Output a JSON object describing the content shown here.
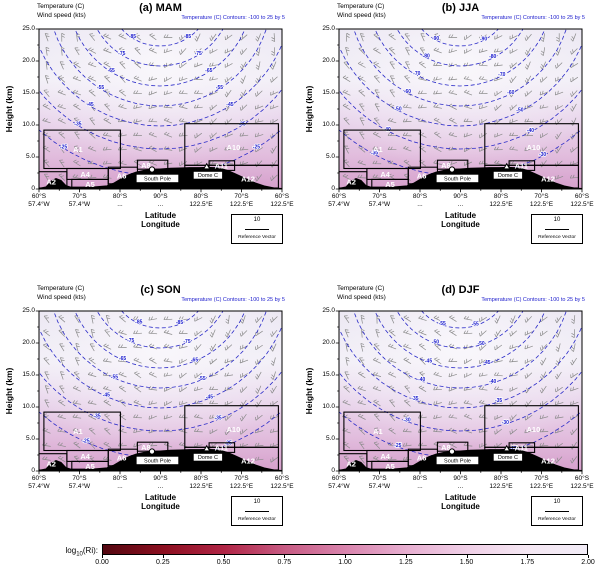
{
  "chart_data": {
    "type": "heatmap",
    "panels": [
      {
        "id": "a",
        "title": "(a) MAM",
        "contour_labels": [
          "-85",
          "-75",
          "-65",
          "-55",
          "-45",
          "-35",
          "-25"
        ]
      },
      {
        "id": "b",
        "title": "(b) JJA",
        "contour_labels": [
          "-90",
          "-80",
          "-70",
          "-60",
          "-50",
          "-40",
          "-30"
        ]
      },
      {
        "id": "c",
        "title": "(c) SON",
        "contour_labels": [
          "-85",
          "-75",
          "-65",
          "-55",
          "-45",
          "-35",
          "-25"
        ]
      },
      {
        "id": "d",
        "title": "(d) DJF",
        "contour_labels": [
          "-55",
          "-50",
          "-45",
          "-40",
          "-35",
          "-30",
          "-25"
        ]
      }
    ],
    "shared": {
      "field_labels": [
        "Temperature (C)",
        "Wind speed (kts)"
      ],
      "contour_note": "Temperature (C) Contours: -100 to 25 by 5",
      "ylabel": "Height (km)",
      "yticks": [
        "25.0",
        "20.0",
        "15.0",
        "10.0",
        "5.0",
        "0"
      ],
      "ytick_values": [
        25,
        20,
        15,
        10,
        5,
        0
      ],
      "ylim": [
        0,
        25
      ],
      "xticks_lat": [
        "60°S",
        "70°S",
        "80°S",
        "90°S",
        "80°S",
        "70°S",
        "60°S"
      ],
      "xticks_lon": [
        "57.4°W",
        "57.4°W",
        "...",
        "...",
        "122.5°E",
        "122.5°E",
        "122.5°E"
      ],
      "xlabel_lines": [
        "Latitude",
        "Longitude"
      ],
      "reference_vector": {
        "value": "10",
        "label": "Reference Vector"
      },
      "contour_color": "#2a2ac8",
      "barb_color": "#8a8a8a",
      "shading_colors": {
        "top": "#eae6f2",
        "upper": "#f2eff7",
        "mid": "#e9d6ec",
        "low": "#e2bede",
        "bottom": "#d6a0cc"
      },
      "regions": [
        {
          "label": "A1",
          "x0": 0.02,
          "x1": 0.335,
          "km0": 3.2,
          "km1": 9.2,
          "label_x": 0.16,
          "label_km": 6.2
        },
        {
          "label": "A2",
          "x0": 0.0,
          "x1": 0.115,
          "km0": 0.15,
          "km1": 2.7,
          "label_x": 0.05,
          "label_km": 1.1
        },
        {
          "label": "A4",
          "x0": 0.115,
          "x1": 0.285,
          "km0": 1.5,
          "km1": 3.2,
          "label_x": 0.19,
          "label_km": 2.3
        },
        {
          "label": "A5",
          "x0": 0.135,
          "x1": 0.285,
          "km0": 0.15,
          "km1": 1.5,
          "label_x": 0.21,
          "label_km": 0.7
        },
        {
          "label": "A6",
          "x0": 0.285,
          "x1": 0.405,
          "km0": 0.8,
          "km1": 3.4,
          "label_x": 0.34,
          "label_km": 2.0
        },
        {
          "label": "A8",
          "x0": 0.405,
          "x1": 0.53,
          "km0": 3.1,
          "km1": 4.5,
          "label_x": 0.44,
          "label_km": 3.7
        },
        {
          "label": "A10",
          "x0": 0.6,
          "x1": 0.985,
          "km0": 3.7,
          "km1": 10.2,
          "label_x": 0.8,
          "label_km": 6.5
        },
        {
          "label": "A11",
          "x0": 0.7,
          "x1": 0.805,
          "km0": 2.9,
          "km1": 4.4,
          "label_x": 0.75,
          "label_km": 3.6
        },
        {
          "label": "A12",
          "x0": 0.6,
          "x1": 0.985,
          "km0": 0.15,
          "km1": 3.7,
          "label_x": 0.86,
          "label_km": 1.6
        }
      ],
      "markers": [
        {
          "label": "South Pole",
          "symbol": "circle",
          "x": 0.465,
          "km": 3.05,
          "box": {
            "x0": 0.4,
            "x1": 0.575,
            "km_top": 2.3,
            "km_bot": 1.0
          }
        },
        {
          "label": "Dome C",
          "symbol": "triangle",
          "x": 0.69,
          "km": 3.45,
          "box": {
            "x0": 0.635,
            "x1": 0.755,
            "km_top": 2.75,
            "km_bot": 1.55
          }
        }
      ],
      "terrain_km": [
        [
          0,
          0.05
        ],
        [
          0.03,
          0.3
        ],
        [
          0.05,
          1.2
        ],
        [
          0.07,
          1.6
        ],
        [
          0.09,
          1.3
        ],
        [
          0.11,
          0.5
        ],
        [
          0.13,
          0.25
        ],
        [
          0.18,
          0.25
        ],
        [
          0.23,
          0.3
        ],
        [
          0.28,
          0.45
        ],
        [
          0.31,
          0.9
        ],
        [
          0.34,
          1.6
        ],
        [
          0.37,
          2.2
        ],
        [
          0.4,
          2.6
        ],
        [
          0.43,
          2.85
        ],
        [
          0.465,
          3.0
        ],
        [
          0.5,
          3.1
        ],
        [
          0.54,
          3.2
        ],
        [
          0.58,
          3.25
        ],
        [
          0.62,
          3.3
        ],
        [
          0.66,
          3.3
        ],
        [
          0.69,
          3.35
        ],
        [
          0.72,
          3.3
        ],
        [
          0.75,
          3.15
        ],
        [
          0.78,
          2.8
        ],
        [
          0.81,
          2.3
        ],
        [
          0.85,
          1.6
        ],
        [
          0.89,
          0.9
        ],
        [
          0.93,
          0.4
        ],
        [
          0.97,
          0.1
        ],
        [
          1,
          0.05
        ]
      ]
    }
  },
  "colorbar": {
    "label_prefix": "log",
    "label_sub": "10",
    "label_suffix": "(Ri):",
    "ticks": [
      "0.00",
      "0.25",
      "0.50",
      "0.75",
      "1.00",
      "1.25",
      "1.50",
      "1.75",
      "2.00"
    ],
    "gradient": [
      [
        "0.00",
        "#530710"
      ],
      [
        "0.25",
        "#8c0f20"
      ],
      [
        "0.50",
        "#b02545"
      ],
      [
        "0.75",
        "#c75b83"
      ],
      [
        "1.00",
        "#d984ad"
      ],
      [
        "1.25",
        "#e7aed0"
      ],
      [
        "1.50",
        "#f0cfe7"
      ],
      [
        "1.75",
        "#f5e7f3"
      ],
      [
        "2.00",
        "#f2ecf7"
      ]
    ]
  }
}
